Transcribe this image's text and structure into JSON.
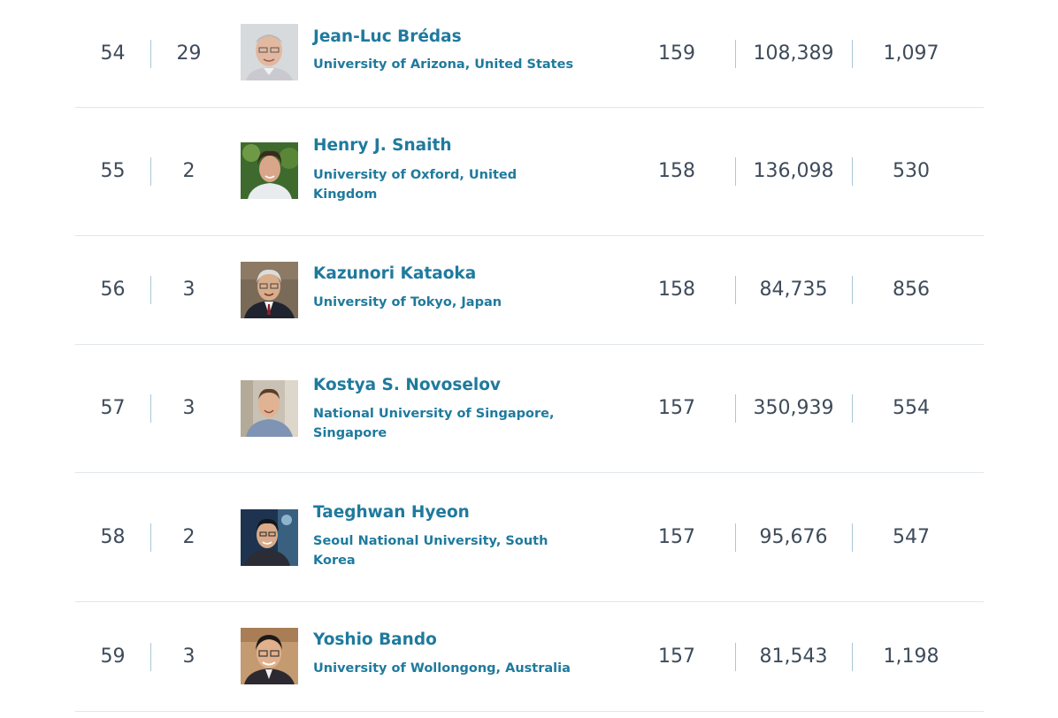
{
  "rows": [
    {
      "rank": "54",
      "national_rank": "29",
      "name": "Jean-Luc Brédas",
      "affiliation": "University of Arizona, United States",
      "h_index": "159",
      "citations": "108,389",
      "papers": "1,097"
    },
    {
      "rank": "55",
      "national_rank": "2",
      "name": "Henry J. Snaith",
      "affiliation": "University of Oxford, United Kingdom",
      "h_index": "158",
      "citations": "136,098",
      "papers": "530"
    },
    {
      "rank": "56",
      "national_rank": "3",
      "name": "Kazunori Kataoka",
      "affiliation": "University of Tokyo, Japan",
      "h_index": "158",
      "citations": "84,735",
      "papers": "856"
    },
    {
      "rank": "57",
      "national_rank": "3",
      "name": "Kostya S. Novoselov",
      "affiliation": "National University of Singapore, Singapore",
      "h_index": "157",
      "citations": "350,939",
      "papers": "554"
    },
    {
      "rank": "58",
      "national_rank": "2",
      "name": "Taeghwan Hyeon",
      "affiliation": "Seoul National University, South Korea",
      "h_index": "157",
      "citations": "95,676",
      "papers": "547"
    },
    {
      "rank": "59",
      "national_rank": "3",
      "name": "Yoshio Bando",
      "affiliation": "University of Wollongong, Australia",
      "h_index": "157",
      "citations": "81,543",
      "papers": "1,198"
    }
  ],
  "colors": {
    "link": "#1f7a9d",
    "number": "#3e4b5a",
    "separator": "#aac6d8",
    "row_border": "#e0e6ec"
  }
}
